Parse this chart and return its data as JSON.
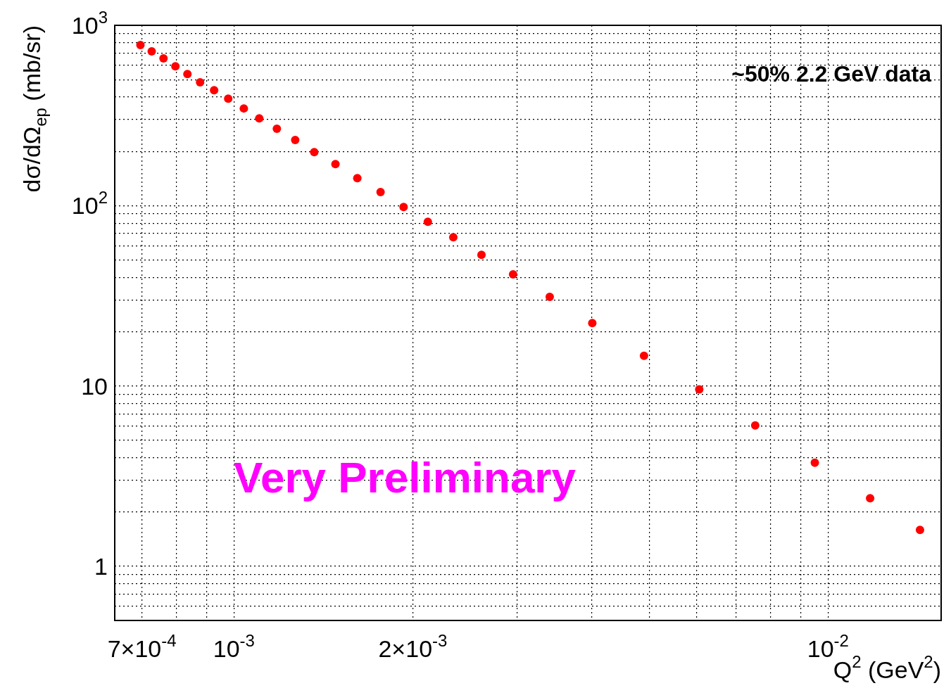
{
  "chart_data": {
    "type": "scatter",
    "xlabel": "Q$^{2}$ (GeV$^{2}$)",
    "ylabel": "dσ/dΩ$_{ep}$ (mb/sr)",
    "annotations": [
      "~50% 2.2 GeV data",
      "Very Preliminary"
    ],
    "log": "xy",
    "grid": true,
    "legend": false,
    "marker": "circle",
    "xlim": [
      0.00063,
      0.0155
    ],
    "xticks": [
      {
        "value": 0.0007,
        "label": "7×10$^{-4}$"
      },
      {
        "value": 0.0008,
        "label": null
      },
      {
        "value": 0.0009,
        "label": null
      },
      {
        "value": 0.001,
        "label": "10$^{-3}$"
      },
      {
        "value": 0.002,
        "label": "2×10$^{-3}$"
      },
      {
        "value": 0.003,
        "label": null
      },
      {
        "value": 0.004,
        "label": null
      },
      {
        "value": 0.005,
        "label": null
      },
      {
        "value": 0.006,
        "label": null
      },
      {
        "value": 0.007,
        "label": null
      },
      {
        "value": 0.008,
        "label": null
      },
      {
        "value": 0.009,
        "label": null
      },
      {
        "value": 0.01,
        "label": "10$^{-2}$"
      }
    ],
    "ylim": [
      0.5,
      1000
    ],
    "yticks": [
      {
        "value": 0.5,
        "label": null
      },
      {
        "value": 0.6,
        "label": null
      },
      {
        "value": 0.7,
        "label": null
      },
      {
        "value": 0.8,
        "label": null
      },
      {
        "value": 0.9,
        "label": null
      },
      1,
      {
        "value": 2,
        "label": null
      },
      {
        "value": 3,
        "label": null
      },
      {
        "value": 4,
        "label": null
      },
      {
        "value": 5,
        "label": null
      },
      {
        "value": 6,
        "label": null
      },
      {
        "value": 7,
        "label": null
      },
      {
        "value": 8,
        "label": null
      },
      {
        "value": 9,
        "label": null
      },
      10,
      {
        "value": 20,
        "label": null
      },
      {
        "value": 30,
        "label": null
      },
      {
        "value": 40,
        "label": null
      },
      {
        "value": 50,
        "label": null
      },
      {
        "value": 60,
        "label": null
      },
      {
        "value": 70,
        "label": null
      },
      {
        "value": 80,
        "label": null
      },
      {
        "value": 90,
        "label": null
      },
      {
        "value": 100,
        "label": "10$^{2}$"
      },
      {
        "value": 200,
        "label": null
      },
      {
        "value": 300,
        "label": null
      },
      {
        "value": 400,
        "label": null
      },
      {
        "value": 500,
        "label": null
      },
      {
        "value": 600,
        "label": null
      },
      {
        "value": 700,
        "label": null
      },
      {
        "value": 800,
        "label": null
      },
      {
        "value": 900,
        "label": null
      },
      {
        "value": 1000,
        "label": "10$^{3}$"
      }
    ],
    "series": [
      {
        "color": "#ff0000",
        "x": [
          0.000696,
          0.000727,
          0.000761,
          0.000797,
          0.000835,
          0.000877,
          0.000926,
          0.000978,
          0.001039,
          0.001103,
          0.001181,
          0.001268,
          0.001365,
          0.001482,
          0.001613,
          0.001765,
          0.00193,
          0.00212,
          0.00234,
          0.00261,
          0.00295,
          0.0034,
          0.00401,
          0.0049,
          0.00607,
          0.00754,
          0.0095,
          0.01177,
          0.01428
        ],
        "values": [
          777,
          717,
          655,
          593,
          537,
          483,
          437,
          392,
          346,
          305,
          267,
          231,
          198,
          170,
          142,
          119,
          98.2,
          81.3,
          66.7,
          53.3,
          41.6,
          31.2,
          22.3,
          14.7,
          9.56,
          6.04,
          3.75,
          2.38,
          1.59
        ]
      }
    ]
  }
}
